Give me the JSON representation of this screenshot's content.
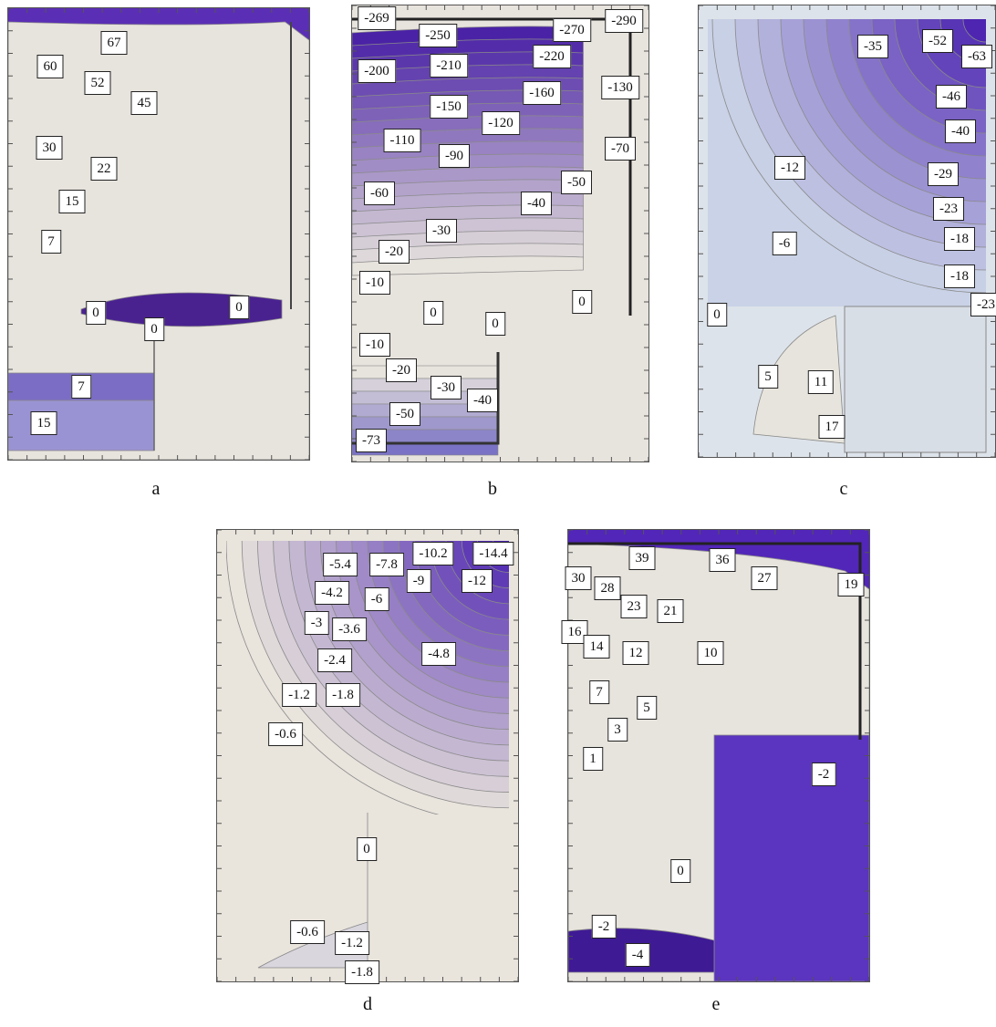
{
  "chart_data": [
    {
      "type": "contour",
      "panel": "a",
      "caption": "a",
      "contour_labels": [
        "67",
        "60",
        "52",
        "45",
        "30",
        "22",
        "15",
        "7",
        "0",
        "0",
        "0",
        "7",
        "15"
      ],
      "colors": {
        "high": "#e7e3dd",
        "low": "#5b2fb5"
      }
    },
    {
      "type": "contour",
      "panel": "b",
      "caption": "b",
      "contour_labels": [
        "-269",
        "-250",
        "-270",
        "-290",
        "-200",
        "-210",
        "-220",
        "-130",
        "-160",
        "-150",
        "-120",
        "-110",
        "-90",
        "-70",
        "-60",
        "-50",
        "-40",
        "-30",
        "-20",
        "-10",
        "0",
        "0",
        "0",
        "-10",
        "-20",
        "-30",
        "-40",
        "-50",
        "-73"
      ],
      "colors": {
        "high": "#e7e3dd",
        "low": "#4a22a6"
      }
    },
    {
      "type": "contour",
      "panel": "c",
      "caption": "c",
      "contour_labels": [
        "-35",
        "-52",
        "-63",
        "-46",
        "-40",
        "-12",
        "-29",
        "-23",
        "-6",
        "-18",
        "-18",
        "-23",
        "0",
        "5",
        "11",
        "17"
      ],
      "colors": {
        "high": "#dde3ea",
        "low": "#4d25b0"
      }
    },
    {
      "type": "contour",
      "panel": "d",
      "caption": "d",
      "contour_labels": [
        "-10.2",
        "-14.4",
        "-5.4",
        "-7.8",
        "-9",
        "-12",
        "-4.2",
        "-6",
        "-3",
        "-3.6",
        "-4.8",
        "-2.4",
        "-1.2",
        "-1.8",
        "-0.6",
        "0",
        "-0.6",
        "-1.2",
        "-1.8"
      ],
      "colors": {
        "high": "#e9e4dc",
        "low": "#4d25b0"
      }
    },
    {
      "type": "contour",
      "panel": "e",
      "caption": "e",
      "contour_labels": [
        "39",
        "36",
        "30",
        "28",
        "27",
        "19",
        "23",
        "21",
        "16",
        "14",
        "12",
        "10",
        "7",
        "5",
        "3",
        "1",
        "-2",
        "0",
        "-2",
        "-4"
      ],
      "colors": {
        "high": "#e7e3dd",
        "low": "#5226b8"
      }
    }
  ]
}
